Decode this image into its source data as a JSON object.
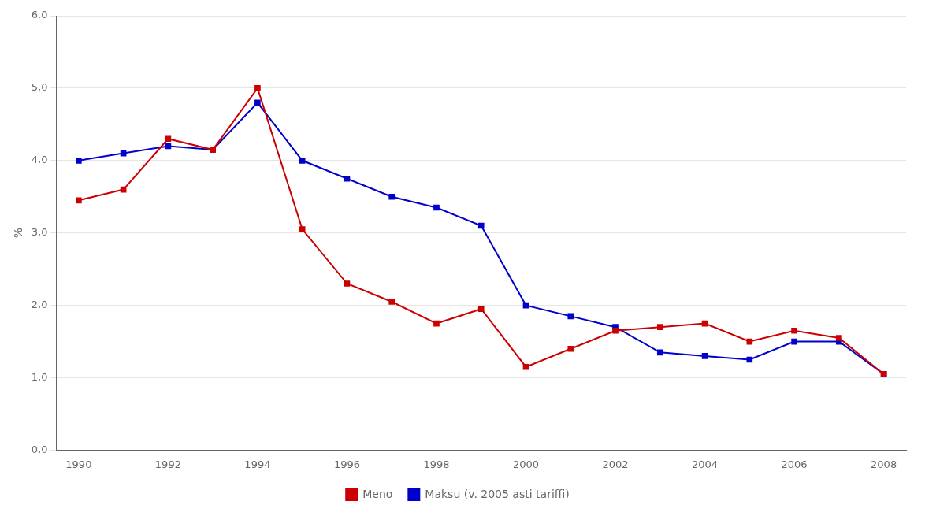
{
  "chart_data": {
    "type": "line",
    "ylabel": "%",
    "x": [
      1990,
      1991,
      1992,
      1993,
      1994,
      1995,
      1996,
      1997,
      1998,
      1999,
      2000,
      2001,
      2002,
      2003,
      2004,
      2005,
      2006,
      2007,
      2008
    ],
    "series": [
      {
        "name": "Meno",
        "color": "#cc0000",
        "marker": "square",
        "values": [
          3.45,
          3.6,
          4.3,
          4.15,
          5.0,
          3.05,
          2.3,
          2.05,
          1.75,
          1.95,
          1.15,
          1.4,
          1.65,
          1.7,
          1.75,
          1.5,
          1.65,
          1.55,
          1.05
        ]
      },
      {
        "name": "Maksu (v. 2005 asti tariffi)",
        "color": "#0000cc",
        "marker": "square",
        "values": [
          4.0,
          4.1,
          4.2,
          4.15,
          4.8,
          4.0,
          3.75,
          3.5,
          3.35,
          3.1,
          2.0,
          1.85,
          1.7,
          1.35,
          1.3,
          1.25,
          1.5,
          1.5,
          1.05
        ]
      }
    ],
    "xlim": [
      1989.5,
      2008.5
    ],
    "xticks": [
      1990,
      1992,
      1994,
      1996,
      1998,
      2000,
      2002,
      2004,
      2006,
      2008
    ],
    "ylim": [
      0.0,
      6.0
    ],
    "yticks": [
      {
        "value": 0.0,
        "label": "0,0"
      },
      {
        "value": 1.0,
        "label": "1,0"
      },
      {
        "value": 2.0,
        "label": "2,0"
      },
      {
        "value": 3.0,
        "label": "3,0"
      },
      {
        "value": 4.0,
        "label": "4,0"
      },
      {
        "value": 5.0,
        "label": "5,0"
      },
      {
        "value": 6.0,
        "label": "6,0"
      }
    ],
    "grid": "y",
    "legend": "bottom"
  }
}
